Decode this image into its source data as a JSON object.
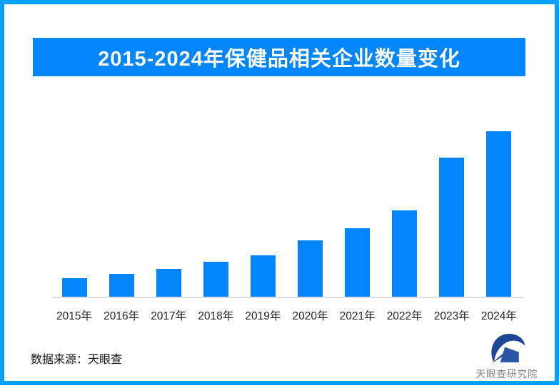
{
  "title_banner": {
    "text": "2015-2024年保健品相关企业数量变化"
  },
  "chart_data": {
    "type": "bar",
    "title": "2015-2024年保健品相关企业数量变化",
    "categories": [
      "2015年",
      "2016年",
      "2017年",
      "2018年",
      "2019年",
      "2020年",
      "2021年",
      "2022年",
      "2023年",
      "2024年"
    ],
    "values": [
      26,
      32,
      39,
      49,
      58,
      79,
      96,
      121,
      195,
      232
    ],
    "unit": "relative bar height (no y-axis labels shown in source)",
    "xlabel": "",
    "ylabel": "",
    "ylim": [
      0,
      245
    ],
    "grid": false,
    "legend": false,
    "bar_color": "#0385fb",
    "axis_line_color": "#dcdcdc"
  },
  "source_note": {
    "text": "数据来源：天眼查"
  },
  "footer_logo": {
    "text": "天眼查研究院"
  },
  "colors": {
    "frame_border": "#02a0fa",
    "banner_bg": "#0385fb",
    "banner_text": "#ffffff",
    "bar_blue": "#0385fb",
    "axis_gray": "#dcdcdc",
    "x_label": "#262626",
    "logo_navy": "#1d4795",
    "logo_blue": "#2a55a5",
    "logo_text_gray": "#85858d"
  }
}
